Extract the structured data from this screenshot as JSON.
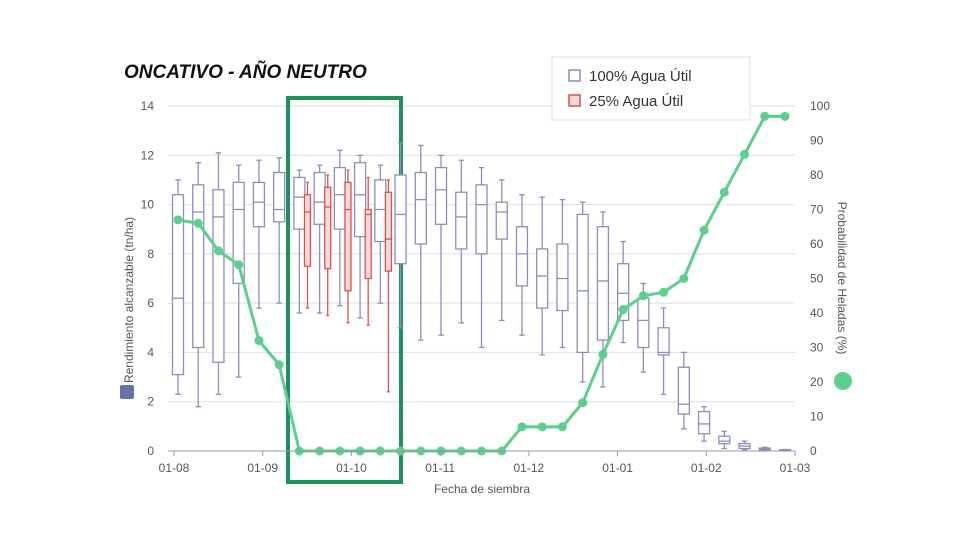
{
  "chart_data": {
    "type": "boxplot",
    "title": "ONCATIVO - AÑO NEUTRO",
    "xlabel": "Fecha de siembra",
    "ylabel_left": "Rendimiento alcanzable (tn/ha)",
    "ylabel_right": "Probabilidad de Heladas (%)",
    "y_left_lim": [
      0,
      14
    ],
    "y_left_ticks": [
      "0",
      "2",
      "4",
      "6",
      "8",
      "10",
      "12",
      "14"
    ],
    "y_right_lim": [
      0,
      100
    ],
    "y_right_ticks": [
      "0",
      "10",
      "20",
      "30",
      "40",
      "50",
      "60",
      "70",
      "80",
      "90",
      "100"
    ],
    "x_ticks": [
      "01-08",
      "01-09",
      "01-10",
      "01-11",
      "01-12",
      "01-01",
      "01-02",
      "01-03"
    ],
    "grid": true,
    "legend_position": "top-right",
    "legend": [
      {
        "label": "100% Agua Útil",
        "color": "#8a8fb8"
      },
      {
        "label": "25% Agua Útil",
        "color": "#d9534f"
      }
    ],
    "colors": {
      "box_100": "#8a8fb8",
      "box_25": "#d9534f",
      "box_25_fill": "#f3d9d8",
      "frost_line": "#5ccf8c",
      "highlight": "#1f8f5f",
      "axis_marker_left": "#6673aa"
    },
    "highlight_range": [
      "01-09",
      "01-11"
    ],
    "series_100": [
      {
        "slot": 0,
        "min": 2.3,
        "q1": 3.1,
        "median": 6.2,
        "q3": 10.4,
        "max": 11.0
      },
      {
        "slot": 1,
        "min": 1.8,
        "q1": 4.2,
        "median": 9.7,
        "q3": 10.8,
        "max": 11.7
      },
      {
        "slot": 2,
        "min": 2.3,
        "q1": 3.6,
        "median": 9.5,
        "q3": 10.6,
        "max": 12.1
      },
      {
        "slot": 3,
        "min": 3.0,
        "q1": 6.8,
        "median": 9.8,
        "q3": 10.9,
        "max": 11.6
      },
      {
        "slot": 4,
        "min": 5.8,
        "q1": 9.1,
        "median": 10.1,
        "q3": 10.9,
        "max": 11.8
      },
      {
        "slot": 5,
        "min": 6.0,
        "q1": 9.3,
        "median": 9.8,
        "q3": 11.3,
        "max": 11.9
      },
      {
        "slot": 6,
        "min": 5.6,
        "q1": 9.0,
        "median": 10.3,
        "q3": 11.1,
        "max": 11.4
      },
      {
        "slot": 7,
        "min": 5.6,
        "q1": 9.2,
        "median": 10.1,
        "q3": 11.3,
        "max": 11.6
      },
      {
        "slot": 8,
        "min": 5.9,
        "q1": 9.0,
        "median": 10.4,
        "q3": 11.5,
        "max": 12.2
      },
      {
        "slot": 9,
        "min": 5.4,
        "q1": 8.7,
        "median": 10.4,
        "q3": 11.7,
        "max": 12.0
      },
      {
        "slot": 10,
        "min": 6.0,
        "q1": 8.5,
        "median": 9.8,
        "q3": 11.0,
        "max": 11.6
      },
      {
        "slot": 11,
        "min": 5.0,
        "q1": 7.6,
        "median": 9.6,
        "q3": 11.2,
        "max": 12.5
      },
      {
        "slot": 12,
        "min": 4.5,
        "q1": 8.4,
        "median": 10.2,
        "q3": 11.3,
        "max": 12.4
      },
      {
        "slot": 13,
        "min": 4.7,
        "q1": 9.2,
        "median": 10.6,
        "q3": 11.5,
        "max": 12.0
      },
      {
        "slot": 14,
        "min": 5.2,
        "q1": 8.2,
        "median": 9.5,
        "q3": 10.5,
        "max": 11.8
      },
      {
        "slot": 15,
        "min": 4.2,
        "q1": 8.0,
        "median": 10.0,
        "q3": 10.8,
        "max": 11.5
      },
      {
        "slot": 16,
        "min": 5.3,
        "q1": 8.6,
        "median": 9.7,
        "q3": 10.1,
        "max": 11.0
      },
      {
        "slot": 17,
        "min": 4.7,
        "q1": 6.7,
        "median": 8.0,
        "q3": 9.1,
        "max": 10.4
      },
      {
        "slot": 18,
        "min": 3.9,
        "q1": 5.8,
        "median": 7.1,
        "q3": 8.2,
        "max": 10.3
      },
      {
        "slot": 19,
        "min": 4.2,
        "q1": 5.7,
        "median": 7.0,
        "q3": 8.4,
        "max": 10.2
      },
      {
        "slot": 20,
        "min": 2.8,
        "q1": 4.0,
        "median": 6.5,
        "q3": 9.6,
        "max": 10.1
      },
      {
        "slot": 21,
        "min": 2.6,
        "q1": 4.5,
        "median": 6.9,
        "q3": 9.1,
        "max": 9.7
      },
      {
        "slot": 22,
        "min": 4.4,
        "q1": 5.3,
        "median": 6.4,
        "q3": 7.6,
        "max": 8.5
      },
      {
        "slot": 23,
        "min": 3.2,
        "q1": 4.2,
        "median": 5.3,
        "q3": 6.2,
        "max": 6.8
      },
      {
        "slot": 24,
        "min": 2.3,
        "q1": 3.9,
        "median": 4.0,
        "q3": 5.0,
        "max": 5.8
      },
      {
        "slot": 25,
        "min": 0.9,
        "q1": 1.5,
        "median": 1.9,
        "q3": 3.4,
        "max": 4.0
      },
      {
        "slot": 26,
        "min": 0.4,
        "q1": 0.7,
        "median": 1.1,
        "q3": 1.6,
        "max": 1.8
      },
      {
        "slot": 27,
        "min": 0.1,
        "q1": 0.3,
        "median": 0.4,
        "q3": 0.6,
        "max": 0.8
      },
      {
        "slot": 28,
        "min": 0.05,
        "q1": 0.1,
        "median": 0.2,
        "q3": 0.3,
        "max": 0.4
      },
      {
        "slot": 29,
        "min": 0.0,
        "q1": 0.05,
        "median": 0.08,
        "q3": 0.12,
        "max": 0.15
      },
      {
        "slot": 30,
        "min": 0.0,
        "q1": 0.02,
        "median": 0.03,
        "q3": 0.05,
        "max": 0.06
      }
    ],
    "series_25": [
      {
        "slot": 6.4,
        "min": 5.8,
        "q1": 7.5,
        "median": 9.7,
        "q3": 10.4,
        "max": 10.9
      },
      {
        "slot": 7.4,
        "min": 5.5,
        "q1": 7.4,
        "median": 9.9,
        "q3": 10.7,
        "max": 11.2
      },
      {
        "slot": 8.4,
        "min": 5.2,
        "q1": 6.5,
        "median": 9.8,
        "q3": 10.9,
        "max": 11.4
      },
      {
        "slot": 9.4,
        "min": 5.1,
        "q1": 7.0,
        "median": 9.6,
        "q3": 9.8,
        "max": 11.1
      },
      {
        "slot": 10.4,
        "min": 2.4,
        "q1": 7.3,
        "median": 8.6,
        "q3": 10.5,
        "max": 11.0
      }
    ],
    "frost_probability": [
      {
        "slot": 0,
        "value": 67
      },
      {
        "slot": 1,
        "value": 66
      },
      {
        "slot": 2,
        "value": 58
      },
      {
        "slot": 3,
        "value": 54
      },
      {
        "slot": 4,
        "value": 32
      },
      {
        "slot": 5,
        "value": 25
      },
      {
        "slot": 6,
        "value": 0
      },
      {
        "slot": 7,
        "value": 0
      },
      {
        "slot": 8,
        "value": 0
      },
      {
        "slot": 9,
        "value": 0
      },
      {
        "slot": 10,
        "value": 0
      },
      {
        "slot": 11,
        "value": 0
      },
      {
        "slot": 12,
        "value": 0
      },
      {
        "slot": 13,
        "value": 0
      },
      {
        "slot": 14,
        "value": 0
      },
      {
        "slot": 15,
        "value": 0
      },
      {
        "slot": 16,
        "value": 0
      },
      {
        "slot": 17,
        "value": 7
      },
      {
        "slot": 18,
        "value": 7
      },
      {
        "slot": 19,
        "value": 7
      },
      {
        "slot": 20,
        "value": 14
      },
      {
        "slot": 21,
        "value": 28
      },
      {
        "slot": 22,
        "value": 41
      },
      {
        "slot": 23,
        "value": 45
      },
      {
        "slot": 24,
        "value": 46
      },
      {
        "slot": 25,
        "value": 50
      },
      {
        "slot": 26,
        "value": 64
      },
      {
        "slot": 27,
        "value": 75
      },
      {
        "slot": 28,
        "value": 86
      },
      {
        "slot": 29,
        "value": 97
      },
      {
        "slot": 30,
        "value": 97
      }
    ]
  }
}
